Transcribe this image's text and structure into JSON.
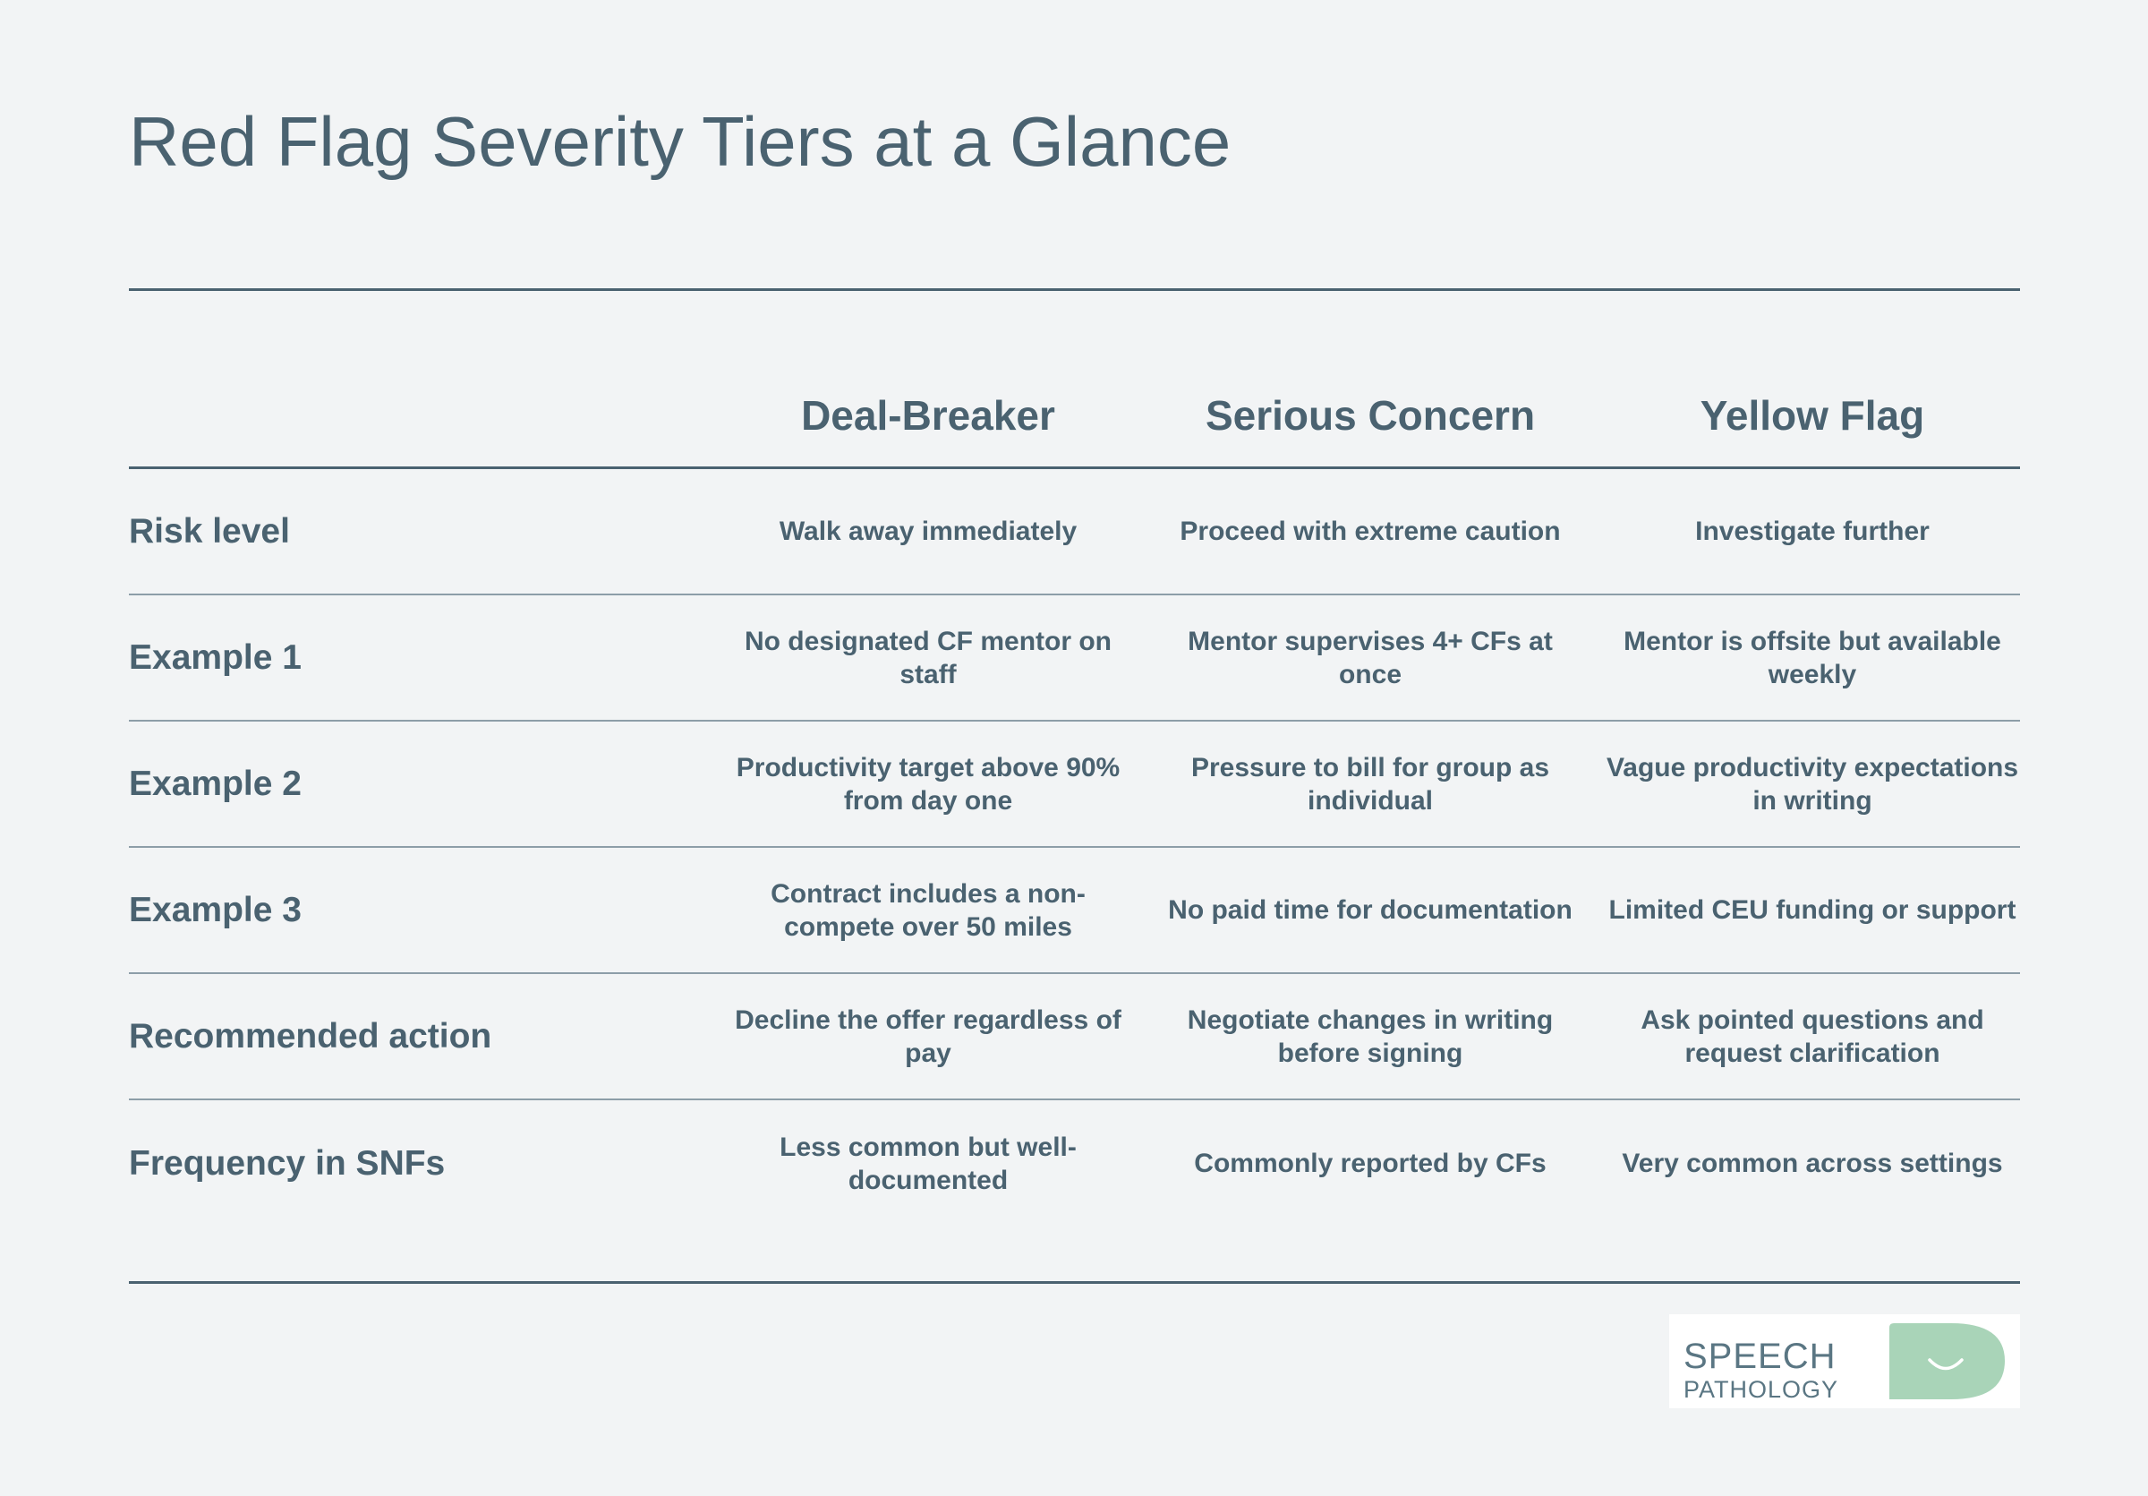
{
  "title": "Red Flag Severity Tiers at a Glance",
  "table": {
    "columns": [
      "Deal-Breaker",
      "Serious Concern",
      "Yellow Flag"
    ],
    "rows": [
      {
        "label": "Risk level",
        "cells": [
          "Walk away immediately",
          "Proceed with extreme caution",
          "Investigate further"
        ]
      },
      {
        "label": "Example 1",
        "cells": [
          "No designated CF mentor on staff",
          "Mentor supervises 4+ CFs at once",
          "Mentor is offsite but available weekly"
        ]
      },
      {
        "label": "Example 2",
        "cells": [
          "Productivity target above 90% from day one",
          "Pressure to bill for group as individual",
          "Vague productivity expectations in writing"
        ]
      },
      {
        "label": "Example 3",
        "cells": [
          "Contract includes a non-compete over 50 miles",
          "No paid time for documentation",
          "Limited CEU funding or support"
        ]
      },
      {
        "label": "Recommended action",
        "cells": [
          "Decline the offer regardless of pay",
          "Negotiate changes in writing before signing",
          "Ask pointed questions and request clarification"
        ]
      },
      {
        "label": "Frequency in SNFs",
        "cells": [
          "Less common but well-documented",
          "Commonly reported by CFs",
          "Very common across settings"
        ]
      }
    ]
  },
  "logo": {
    "line1": "SPEECH",
    "line2": "PATHOLOGY",
    "text_color": "#5a7683",
    "bubble_color": "#a9d4b8"
  }
}
